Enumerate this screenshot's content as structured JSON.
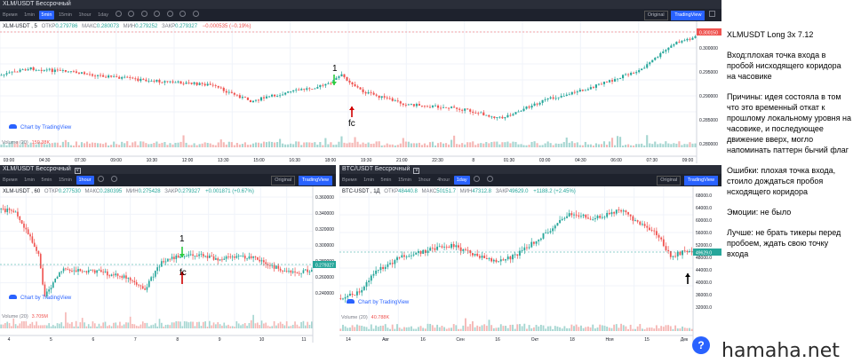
{
  "panels": {
    "top": {
      "title": "XLM/USDT Бессрочный",
      "toolbar": [
        "Время",
        "1min",
        "5min",
        "15min",
        "1hour",
        "1day"
      ],
      "active_interval": "5min",
      "btn_original": "Original",
      "btn_tradingview": "TradingView",
      "symbol": "XLM-USDT , 5",
      "open_label": "ОТКР",
      "open": "0.279786",
      "high_label": "МАКС",
      "high": "0.280073",
      "low_label": "МИН",
      "low": "0.279252",
      "close_label": "ЗАКР",
      "close": "0.279327",
      "change": "−0.000535 (−0.19%)",
      "brand": "Chart by TradingView",
      "volume_label": "Volume (20)",
      "volume_value": "159.38K",
      "price_tag": "0.300150",
      "y_ticks": [
        "0.300000",
        "0.295000",
        "0.290000",
        "0.285000",
        "0.280000"
      ],
      "x_ticks": [
        "03:00",
        "04:30",
        "07:30",
        "09:00",
        "10:30",
        "12:00",
        "13:30",
        "15:00",
        "16:30",
        "18:00",
        "19:30",
        "21:00",
        "22:30",
        "8",
        "01:30",
        "03:00",
        "04:30",
        "06:00",
        "07:30",
        "09:00"
      ],
      "annotation_num": "1",
      "annotation_fc": "fc"
    },
    "left": {
      "title": "XLM/USDT Бессрочный",
      "toolbar": [
        "Время",
        "1min",
        "5min",
        "15min",
        "1hour"
      ],
      "btn_original": "Original",
      "btn_tradingview": "TradingView",
      "symbol": "XLM-USDT , 60",
      "open_label": "ОТКР",
      "open": "0.277530",
      "high_label": "МАКС",
      "high": "0.280395",
      "low_label": "МИН",
      "low": "0.275428",
      "close_label": "ЗАКР",
      "close": "0.279327",
      "change": "+0.001871 (+0.67%)",
      "brand": "Chart by TradingView",
      "volume_label": "Volume (20)",
      "volume_value": "3.705M",
      "price_tag": "0.279327",
      "y_ticks": [
        "0.360000",
        "0.340000",
        "0.320000",
        "0.300000",
        "0.280000",
        "0.260000",
        "0.240000"
      ],
      "x_ticks": [
        "4",
        "5",
        "6",
        "7",
        "8",
        "9",
        "10",
        "11"
      ],
      "annotation_num": "1",
      "annotation_fc": "fc"
    },
    "right": {
      "title": "BTC/USDT Бессрочный",
      "toolbar": [
        "Время",
        "1min",
        "5min",
        "15min",
        "1hour",
        "4hour"
      ],
      "active_interval": "1day",
      "btn_original": "Original",
      "btn_tradingview": "TradingView",
      "symbol": "BTC-USDT , 1Д",
      "open_label": "ОТКР",
      "open": "48440.8",
      "high_label": "МАКС",
      "high": "50151.7",
      "low_label": "МИН",
      "low": "47312.8",
      "close_label": "ЗАКР",
      "close": "49629.0",
      "change": "+1188.2 (+2.45%)",
      "brand": "Chart by TradingView",
      "volume_label": "Volume (20)",
      "volume_value": "40.788K",
      "price_tag": "49629.0",
      "y_ticks": [
        "68000.0",
        "64000.0",
        "60000.0",
        "56000.0",
        "52000.0",
        "48000.0",
        "44000.0",
        "40000.0",
        "36000.0",
        "32000.0"
      ],
      "x_ticks": [
        "14",
        "Авг",
        "16",
        "Сен",
        "16",
        "Окт",
        "18",
        "Ноя",
        "15",
        "Дек"
      ]
    }
  },
  "notes": {
    "title": "XLMUSDT Long 3x 7.12",
    "entry": "Вход:плохая точка входа в пробой нисходящего коридора на часовике",
    "reasons": "Причины: идея состояла в том что это временный откат к прошлому локальному уровня на часовике, и последующее движение вверх, могло напоминать паттерн бычий флаг",
    "errors": "Ошибки: плохая точка входа, стоило дождаться пробоя нсходящего коридора",
    "emotions": "Эмоции: не было",
    "better": "Лучше: не брать тикеры перед пробоем, ждать свою точку входа"
  },
  "watermark": "hamaha.net",
  "help_glyph": "?",
  "colors": {
    "up": "#26a69a",
    "down": "#ef5350",
    "accent": "#2962ff",
    "annotation_up": "#2ecc40",
    "annotation_down": "#d00000"
  }
}
